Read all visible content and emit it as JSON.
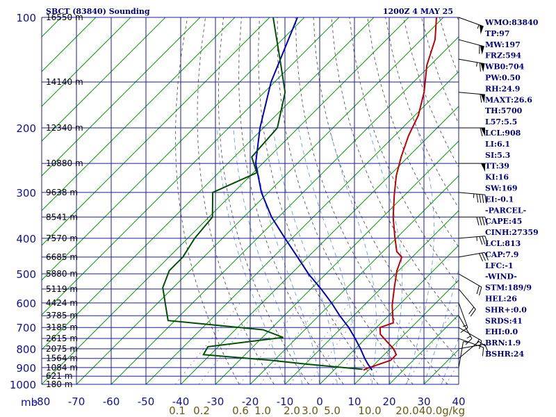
{
  "header": {
    "station": "SBCT (83840) Sounding",
    "time": "1200Z  4 MAY 25"
  },
  "indices": [
    "WMO:83840",
    "TP:97",
    "MW:197",
    "FRZ:594",
    "WB0:704",
    "PW:0.50",
    "RH:24.9",
    "MAXT:26.6",
    "TH:5700",
    "L57:5.5",
    "LCL:908",
    "LI:6.1",
    "SI:5.3",
    "TT:39",
    "KI:16",
    "SW:169",
    "EI:-0.1",
    "-PARCEL-",
    "CAPE:45",
    "CINH:27359",
    "LCL:813",
    "CAP:7.9",
    "LFC:-1",
    "-WIND-",
    "STM:189/9",
    "HEL:26",
    "SHR+:0.0",
    "SRDS:41",
    "EHI:0.0",
    "BRN:1.9",
    "BSHR:24"
  ],
  "chart_data": {
    "type": "line",
    "title": "SBCT (83840) Sounding",
    "subtitle": "1200Z  4 MAY 25",
    "xlabel": "",
    "ylabel": "mb",
    "x_unit": "°C (skewed)",
    "y_scale": "log",
    "ylim": [
      100,
      1000
    ],
    "xlim": [
      -80,
      40
    ],
    "pressure_ticks": [
      "100",
      "200",
      "300",
      "400",
      "500",
      "600",
      "700",
      "800",
      "900",
      "1000"
    ],
    "temperature_ticks": [
      "-80",
      "-70",
      "-60",
      "-50",
      "-40",
      "-30",
      "-20",
      "-10",
      "0",
      "10",
      "20",
      "30",
      "40"
    ],
    "mixing_ratio_ticks": [
      "0.1",
      "0.2",
      "0.6",
      "1.0",
      "2.0",
      "3.0",
      "5.0",
      "10.0",
      "20.0",
      "40.0"
    ],
    "mixing_ratio_unit": "g/kg",
    "height_labels": [
      {
        "p": 100,
        "text": "16550 m"
      },
      {
        "p": 150,
        "text": "14140 m"
      },
      {
        "p": 200,
        "text": "12340 m"
      },
      {
        "p": 250,
        "text": "10880 m"
      },
      {
        "p": 300,
        "text": "9638 m"
      },
      {
        "p": 350,
        "text": "8541 m"
      },
      {
        "p": 400,
        "text": "7570 m"
      },
      {
        "p": 450,
        "text": "6685 m"
      },
      {
        "p": 500,
        "text": "5880 m"
      },
      {
        "p": 550,
        "text": "5119 m"
      },
      {
        "p": 600,
        "text": "4424 m"
      },
      {
        "p": 650,
        "text": "3785 m"
      },
      {
        "p": 700,
        "text": "3185 m"
      },
      {
        "p": 750,
        "text": "2615 m"
      },
      {
        "p": 800,
        "text": "2075 m"
      },
      {
        "p": 850,
        "text": "1564 m"
      },
      {
        "p": 900,
        "text": "1084 m"
      },
      {
        "p": 950,
        "text": "621 m"
      },
      {
        "p": 1000,
        "text": "180 m"
      }
    ],
    "series": [
      {
        "color": "#c00000",
        "points": [
          [
            100,
            -72
          ],
          [
            115,
            -66
          ],
          [
            135,
            -61
          ],
          [
            160,
            -54
          ],
          [
            185,
            -49
          ],
          [
            210,
            -46
          ],
          [
            240,
            -42
          ],
          [
            270,
            -38
          ],
          [
            305,
            -33
          ],
          [
            350,
            -27
          ],
          [
            395,
            -21
          ],
          [
            435,
            -16
          ],
          [
            450,
            -13
          ],
          [
            490,
            -10.5
          ],
          [
            550,
            -6
          ],
          [
            610,
            -1.8
          ],
          [
            660,
            2
          ],
          [
            680,
            3.5
          ],
          [
            700,
            1
          ],
          [
            730,
            3
          ],
          [
            760,
            6.5
          ],
          [
            800,
            11
          ],
          [
            830,
            13.5
          ],
          [
            860,
            13.5
          ],
          [
            890,
            10.5
          ],
          [
            905,
            9
          ],
          [
            915,
            8.5
          ]
        ]
      },
      {
        "color": "#0000c0",
        "points": [
          [
            100,
            -112
          ],
          [
            150,
            -101
          ],
          [
            200,
            -91
          ],
          [
            250,
            -82
          ],
          [
            300,
            -72
          ],
          [
            350,
            -62
          ],
          [
            400,
            -52
          ],
          [
            450,
            -43
          ],
          [
            500,
            -35
          ],
          [
            550,
            -27
          ],
          [
            600,
            -20
          ],
          [
            650,
            -14
          ],
          [
            700,
            -8
          ],
          [
            750,
            -3
          ],
          [
            800,
            1.5
          ],
          [
            850,
            5.5
          ],
          [
            880,
            8
          ],
          [
            915,
            11
          ]
        ]
      },
      {
        "color": "#005000",
        "points": [
          [
            100,
            -119
          ],
          [
            135,
            -103
          ],
          [
            160,
            -94
          ],
          [
            200,
            -86
          ],
          [
            240,
            -85
          ],
          [
            265,
            -79
          ],
          [
            300,
            -86
          ],
          [
            350,
            -79
          ],
          [
            400,
            -78
          ],
          [
            450,
            -76
          ],
          [
            490,
            -76
          ],
          [
            545,
            -73
          ],
          [
            610,
            -67
          ],
          [
            670,
            -62
          ],
          [
            710,
            -32
          ],
          [
            745,
            -24
          ],
          [
            790,
            -43
          ],
          [
            830,
            -42
          ],
          [
            860,
            -21
          ],
          [
            880,
            -10
          ],
          [
            910,
            8
          ]
        ]
      }
    ],
    "wind_barbs": [
      {
        "p": 100,
        "dir": 290,
        "spd": 55
      },
      {
        "p": 115,
        "dir": 285,
        "spd": 60
      },
      {
        "p": 130,
        "dir": 280,
        "spd": 65
      },
      {
        "p": 160,
        "dir": 275,
        "spd": 60
      },
      {
        "p": 200,
        "dir": 270,
        "spd": 60
      },
      {
        "p": 250,
        "dir": 270,
        "spd": 50
      },
      {
        "p": 300,
        "dir": 275,
        "spd": 45
      },
      {
        "p": 350,
        "dir": 270,
        "spd": 40
      },
      {
        "p": 400,
        "dir": 265,
        "spd": 35
      },
      {
        "p": 450,
        "dir": 260,
        "spd": 30
      },
      {
        "p": 500,
        "dir": 300,
        "spd": 20
      },
      {
        "p": 550,
        "dir": 320,
        "spd": 20
      },
      {
        "p": 600,
        "dir": 340,
        "spd": 15
      },
      {
        "p": 650,
        "dir": 330,
        "spd": 15
      },
      {
        "p": 700,
        "dir": 300,
        "spd": 15
      },
      {
        "p": 750,
        "dir": 290,
        "spd": 10
      },
      {
        "p": 800,
        "dir": 260,
        "spd": 10
      },
      {
        "p": 850,
        "dir": 230,
        "spd": 10
      },
      {
        "p": 900,
        "dir": 190,
        "spd": 5
      }
    ],
    "grid": true,
    "colors": {
      "isobar": "#1a1aa0",
      "isotherm": "#00a000",
      "dry_adiabat": "#555555",
      "moist_adiabat": "#6aa0e0",
      "temperature": "#c00000",
      "parcel": "#0000c0",
      "dewpoint": "#005000"
    }
  }
}
